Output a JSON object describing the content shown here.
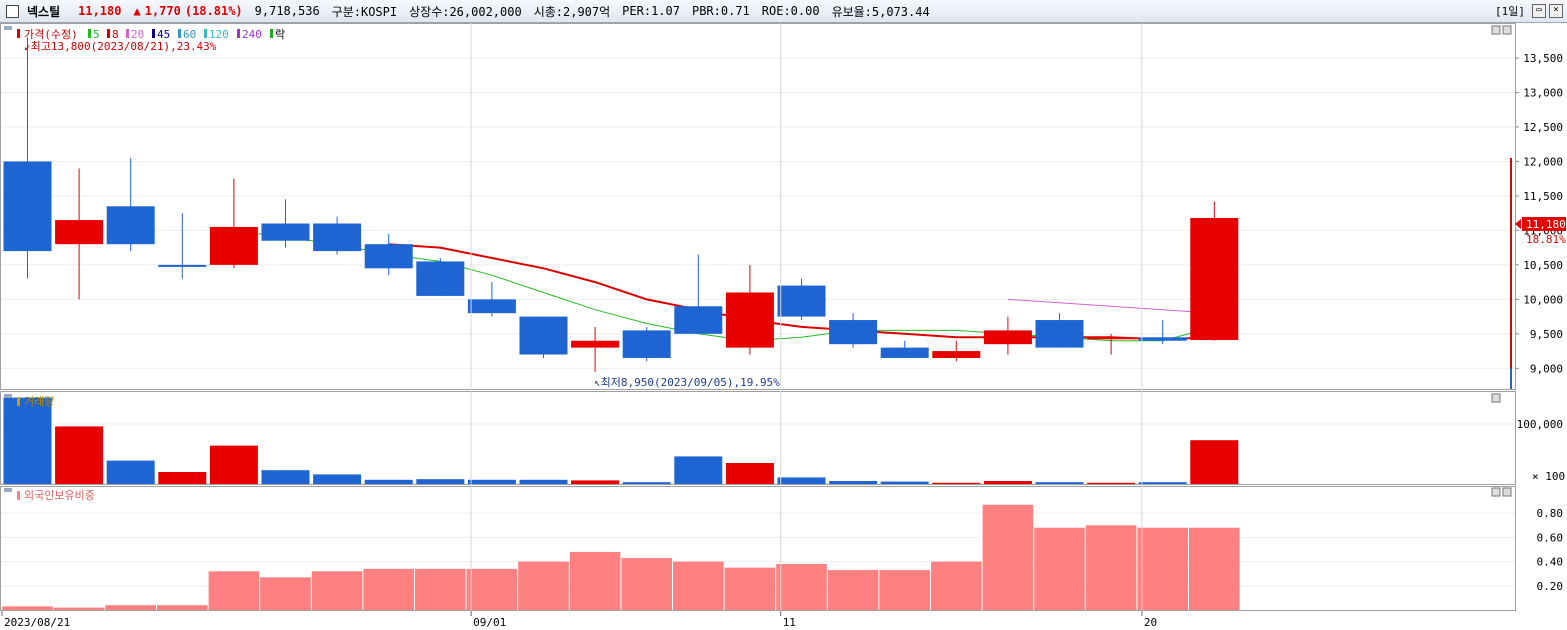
{
  "header": {
    "stock_name": "넥스틸",
    "price": "11,180",
    "change_arrow": "▲",
    "change": "1,770",
    "change_pct": "(18.81%)",
    "volume": "9,718,536",
    "market": "구분:KOSPI",
    "listed_shares": "상장수:26,002,000",
    "market_cap": "시총:2,907억",
    "per": "PER:1.07",
    "pbr": "PBR:0.71",
    "roe": "ROE:0.00",
    "float_ratio": "유보율:5,073.44",
    "period": "[1일]"
  },
  "colors": {
    "up": "#e60000",
    "down": "#1e64d2",
    "ma5": "#22bb22",
    "ma8": "#dd0000",
    "ma20": "#cc66cc",
    "foreign": "#ff8080",
    "grid": "#c8c8c8"
  },
  "legend": {
    "price_label": "가격(수정)",
    "ma": [
      "5",
      "8",
      "20",
      "45",
      "60",
      "120",
      "240"
    ],
    "ma_colors": [
      "#22bb22",
      "#dd0000",
      "#cc66cc",
      "#000080",
      "#3399cc",
      "#33bbbb",
      "#9933cc"
    ],
    "fall_label": "락"
  },
  "annotations": {
    "high": "최고13,800(2023/08/21),23.43%",
    "low": "최저8,950(2023/09/05),19.95%"
  },
  "price_tag": {
    "value": "11,180",
    "pct": "18.81%"
  },
  "panes": {
    "volume_label": "거래량",
    "foreign_label": "외국인보유비중",
    "volume_unit": "× 100"
  },
  "x_labels": [
    "2023/08/21",
    "09/01",
    "11",
    "20"
  ],
  "chart_data": [
    {
      "type": "candlestick",
      "title": "가격(수정)",
      "ylim": [
        8700,
        13950
      ],
      "yticks": [
        9000,
        9500,
        10000,
        10500,
        11000,
        11500,
        12000,
        12500,
        13000,
        13500
      ],
      "ytick_labels": [
        "9,000",
        "9,500",
        "10,000",
        "10,500",
        "11,000",
        "11,500",
        "12,000",
        "12,500",
        "13,000",
        "13,500"
      ],
      "candles": [
        {
          "o": 12000,
          "h": 13800,
          "l": 10300,
          "c": 10700
        },
        {
          "o": 10800,
          "h": 11900,
          "l": 10000,
          "c": 11150
        },
        {
          "o": 11350,
          "h": 12050,
          "l": 10700,
          "c": 10800
        },
        {
          "o": 10500,
          "h": 11250,
          "l": 10300,
          "c": 10480
        },
        {
          "o": 10500,
          "h": 11750,
          "l": 10450,
          "c": 11050
        },
        {
          "o": 11100,
          "h": 11450,
          "l": 10750,
          "c": 10850
        },
        {
          "o": 11100,
          "h": 11200,
          "l": 10650,
          "c": 10700
        },
        {
          "o": 10800,
          "h": 10950,
          "l": 10350,
          "c": 10450
        },
        {
          "o": 10550,
          "h": 10600,
          "l": 10050,
          "c": 10050
        },
        {
          "o": 10000,
          "h": 10250,
          "l": 9750,
          "c": 9800
        },
        {
          "o": 9750,
          "h": 9750,
          "l": 9150,
          "c": 9200
        },
        {
          "o": 9300,
          "h": 9600,
          "l": 8950,
          "c": 9400
        },
        {
          "o": 9550,
          "h": 9600,
          "l": 9100,
          "c": 9150
        },
        {
          "o": 9900,
          "h": 10650,
          "l": 9500,
          "c": 9500
        },
        {
          "o": 9300,
          "h": 10500,
          "l": 9200,
          "c": 10100
        },
        {
          "o": 10200,
          "h": 10300,
          "l": 9700,
          "c": 9750
        },
        {
          "o": 9700,
          "h": 9800,
          "l": 9300,
          "c": 9350
        },
        {
          "o": 9300,
          "h": 9400,
          "l": 9150,
          "c": 9150
        },
        {
          "o": 9150,
          "h": 9400,
          "l": 9100,
          "c": 9250
        },
        {
          "o": 9350,
          "h": 9750,
          "l": 9200,
          "c": 9550
        },
        {
          "o": 9700,
          "h": 9800,
          "l": 9300,
          "c": 9300
        },
        {
          "o": 9450,
          "h": 9500,
          "l": 9200,
          "c": 9450
        },
        {
          "o": 9450,
          "h": 9700,
          "l": 9350,
          "c": 9400
        },
        {
          "o": 9410,
          "h": 11420,
          "l": 9400,
          "c": 11180
        }
      ],
      "ma5": [
        null,
        null,
        null,
        null,
        11000,
        10900,
        10800,
        10650,
        10550,
        10350,
        10100,
        9850,
        9650,
        9500,
        9400,
        9450,
        9550,
        9550,
        9550,
        9500,
        9450,
        9400,
        9400,
        9600
      ],
      "ma8": [
        null,
        null,
        null,
        null,
        null,
        null,
        null,
        10800,
        10750,
        10600,
        10450,
        10250,
        10000,
        9850,
        9700,
        9600,
        9550,
        9500,
        9450,
        9450,
        9450,
        9450,
        9420,
        9450
      ],
      "ma20": [
        null,
        null,
        null,
        null,
        null,
        null,
        null,
        null,
        null,
        null,
        null,
        null,
        null,
        null,
        null,
        null,
        null,
        null,
        null,
        10000,
        9950,
        9900,
        9850,
        9800
      ]
    },
    {
      "type": "bar",
      "title": "거래량",
      "unit": "× 100",
      "ylim": [
        0,
        150000
      ],
      "yticks": [
        100000
      ],
      "ytick_labels": [
        "100,000"
      ],
      "values": [
        144000,
        96000,
        39000,
        20000,
        64000,
        23000,
        16000,
        7000,
        8000,
        7000,
        7000,
        6000,
        3000,
        46000,
        35000,
        11000,
        5000,
        4000,
        2000,
        5000,
        3000,
        2000,
        3000,
        73000
      ],
      "dir": [
        "d",
        "u",
        "d",
        "u",
        "u",
        "d",
        "d",
        "d",
        "d",
        "d",
        "d",
        "u",
        "d",
        "d",
        "u",
        "d",
        "d",
        "d",
        "u",
        "u",
        "d",
        "u",
        "d",
        "u"
      ]
    },
    {
      "type": "bar",
      "title": "외국인보유비중",
      "ylim": [
        0,
        1.0
      ],
      "yticks": [
        0.2,
        0.4,
        0.6,
        0.8
      ],
      "ytick_labels": [
        "0.20",
        "0.40",
        "0.60",
        "0.80"
      ],
      "values": [
        0.03,
        0.02,
        0.04,
        0.04,
        0.32,
        0.27,
        0.32,
        0.34,
        0.34,
        0.34,
        0.4,
        0.48,
        0.43,
        0.4,
        0.35,
        0.38,
        0.33,
        0.33,
        0.4,
        0.87,
        0.68,
        0.7,
        0.68,
        0.68
      ]
    }
  ]
}
